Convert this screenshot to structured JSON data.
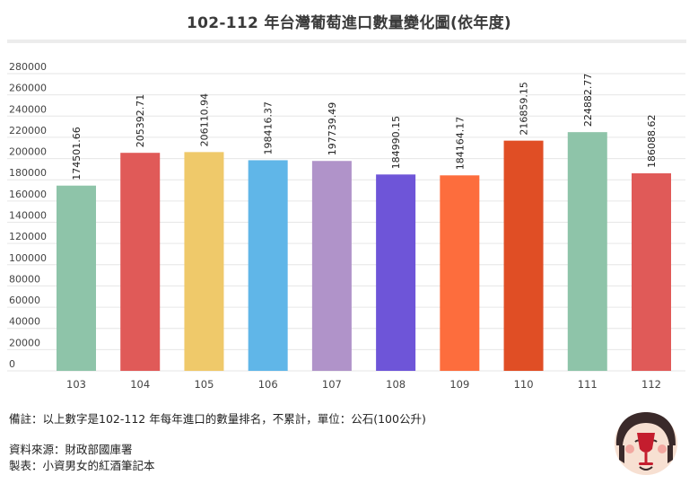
{
  "title": "102-112 年台灣葡萄進口數量變化圖(依年度)",
  "chart_data": {
    "type": "bar",
    "title": "102-112 年台灣葡萄進口數量變化圖(依年度)",
    "categories": [
      "103",
      "104",
      "105",
      "106",
      "107",
      "108",
      "109",
      "110",
      "111",
      "112"
    ],
    "values": [
      174501.66,
      205392.71,
      206110.94,
      198416.37,
      197739.49,
      184990.15,
      184164.17,
      216859.15,
      224882.77,
      186088.62
    ],
    "value_labels": [
      "174501.66",
      "205392.71",
      "206110.94",
      "198416.37",
      "197739.49",
      "184990.15",
      "184164.17",
      "216859.15",
      "224882.77",
      "186088.62"
    ],
    "bar_colors": [
      "#8ec4a9",
      "#e05a58",
      "#efc96a",
      "#60b6e8",
      "#b093c9",
      "#6e55d8",
      "#fd6d3d",
      "#e04e25",
      "#8ec4a9",
      "#e05a58"
    ],
    "ylim": [
      0,
      280000
    ],
    "yticks": [
      "0",
      "20000",
      "40000",
      "60000",
      "80000",
      "100000",
      "120000",
      "140000",
      "160000",
      "180000",
      "200000",
      "220000",
      "240000",
      "260000",
      "280000"
    ],
    "xlabel": "",
    "ylabel": "",
    "grid": true,
    "legend": "none"
  },
  "notes": {
    "line1": "備註：以上數字是102-112 年每年進口的數量排名，不累計，單位：公石(100公升)",
    "line2": "資料來源：財政部國庫署",
    "line3": "製表：小資男女的紅酒筆記本"
  },
  "colors": {
    "background": "#ffffff",
    "grid": "#e6e6e6",
    "text": "#333333"
  },
  "icons": [
    "wine-mascot-icon"
  ]
}
